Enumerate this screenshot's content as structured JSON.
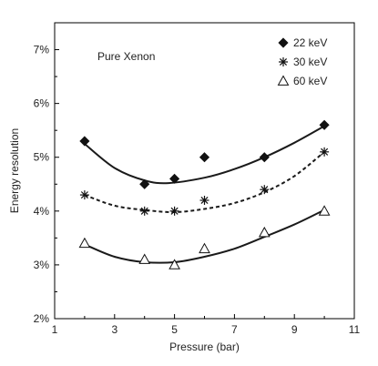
{
  "chart_data": {
    "type": "scatter",
    "xlabel": "Pressure (bar)",
    "ylabel": "Energy resolution",
    "xlim": [
      1,
      11
    ],
    "ylim": [
      2,
      7.5
    ],
    "x_ticks": [
      1,
      3,
      5,
      7,
      9,
      11
    ],
    "y_ticks": [
      2,
      3,
      4,
      5,
      6,
      7
    ],
    "y_tick_labels": [
      "2%",
      "3%",
      "4%",
      "5%",
      "6%",
      "7%"
    ],
    "x_tick_labels": [
      "1",
      "3",
      "5",
      "7",
      "9",
      "11"
    ],
    "annotation": "Pure Xenon",
    "legend_position": "top-right",
    "grid": false,
    "series": [
      {
        "name": "22 keV",
        "marker": "diamond-filled",
        "points": [
          [
            2,
            5.3
          ],
          [
            4,
            4.5
          ],
          [
            5,
            4.6
          ],
          [
            6,
            5.0
          ],
          [
            8,
            5.0
          ],
          [
            10,
            5.6
          ]
        ],
        "fit_line": "solid",
        "fit": [
          [
            2,
            5.25
          ],
          [
            3,
            4.8
          ],
          [
            4,
            4.57
          ],
          [
            4.8,
            4.52
          ],
          [
            6,
            4.62
          ],
          [
            7,
            4.78
          ],
          [
            8,
            5.0
          ],
          [
            9,
            5.27
          ],
          [
            10,
            5.58
          ]
        ]
      },
      {
        "name": "30 keV",
        "marker": "asterisk",
        "points": [
          [
            2,
            4.3
          ],
          [
            4,
            4.0
          ],
          [
            5,
            4.0
          ],
          [
            6,
            4.2
          ],
          [
            8,
            4.4
          ],
          [
            10,
            5.1
          ]
        ],
        "fit_line": "dashed",
        "fit": [
          [
            2,
            4.3
          ],
          [
            3,
            4.1
          ],
          [
            4,
            4.02
          ],
          [
            5,
            3.98
          ],
          [
            6,
            4.04
          ],
          [
            7,
            4.15
          ],
          [
            8,
            4.35
          ],
          [
            9,
            4.65
          ],
          [
            10,
            5.1
          ]
        ]
      },
      {
        "name": "60 keV",
        "marker": "triangle-open",
        "points": [
          [
            2,
            3.4
          ],
          [
            4,
            3.1
          ],
          [
            5,
            3.0
          ],
          [
            6,
            3.3
          ],
          [
            8,
            3.6
          ],
          [
            10,
            4.0
          ]
        ],
        "fit_line": "solid",
        "fit": [
          [
            2,
            3.38
          ],
          [
            3,
            3.15
          ],
          [
            4,
            3.05
          ],
          [
            5,
            3.05
          ],
          [
            6,
            3.15
          ],
          [
            7,
            3.3
          ],
          [
            8,
            3.52
          ],
          [
            9,
            3.75
          ],
          [
            10,
            4.02
          ]
        ]
      }
    ]
  }
}
